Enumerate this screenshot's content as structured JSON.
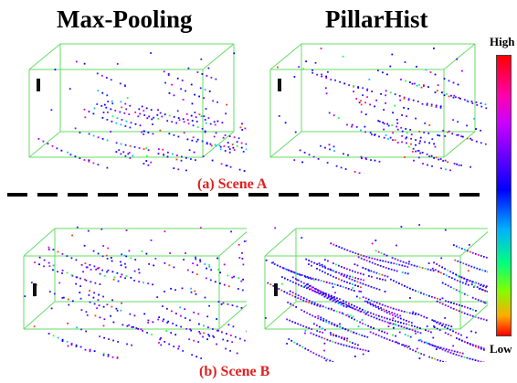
{
  "titles": {
    "left": "Max-Pooling",
    "right": "PillarHist"
  },
  "captions": {
    "scene_a": "(a) Scene A",
    "scene_b": "(b) Scene B"
  },
  "colorbar": {
    "high": "High",
    "low": "Low",
    "colors": [
      "#ff0000",
      "#ff00aa",
      "#cc00ff",
      "#0000ff",
      "#00b0ff",
      "#00ff80",
      "#80ff00",
      "#ffaa00",
      "#ff0000"
    ]
  },
  "box_color": "#66dd66"
}
